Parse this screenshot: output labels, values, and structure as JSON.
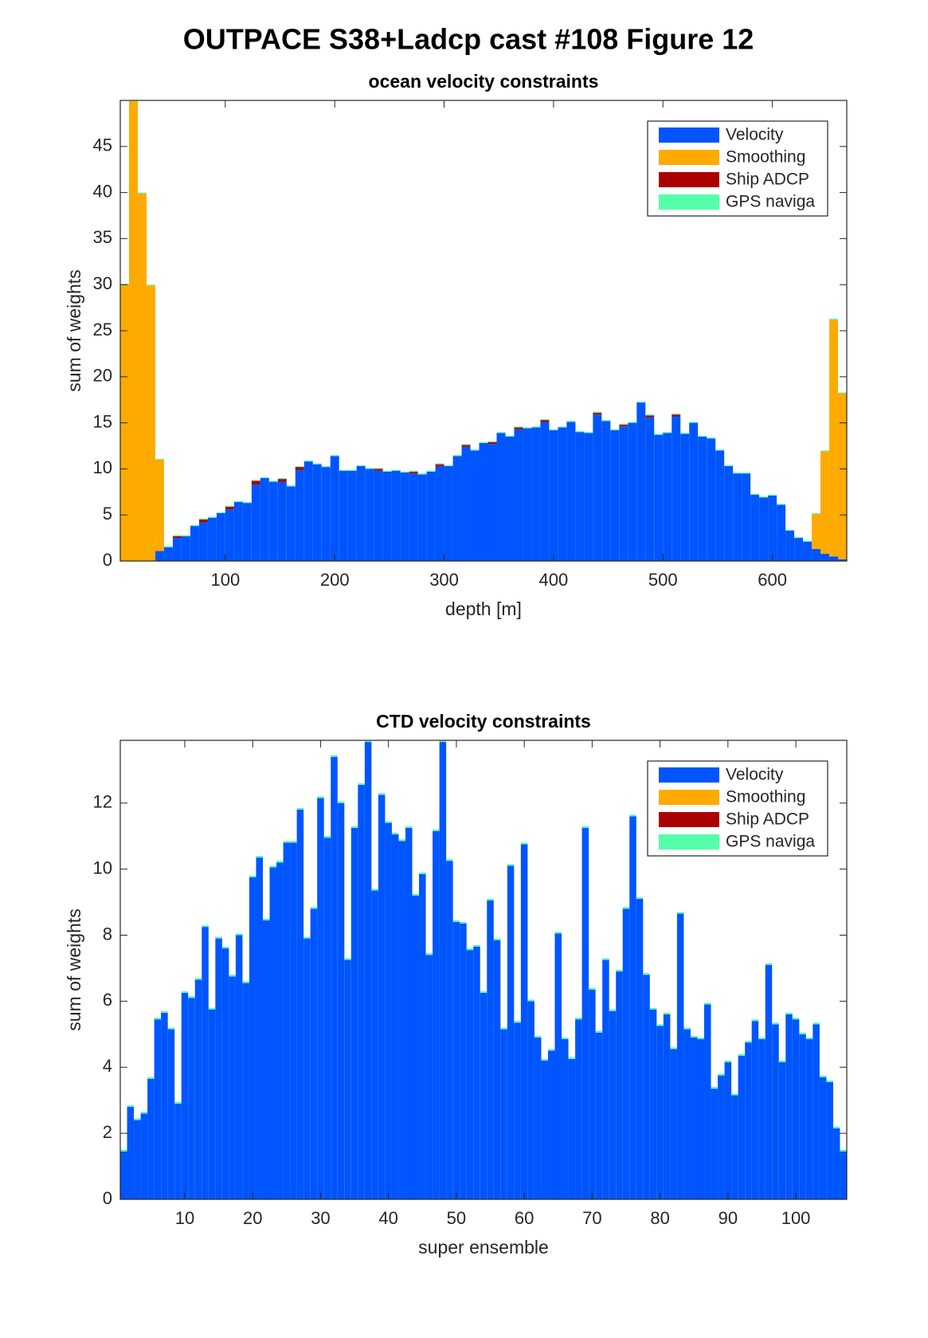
{
  "title": "OUTPACE S38+Ladcp cast #108  Figure 12",
  "chart_data": [
    {
      "type": "bar",
      "stacked": true,
      "title": "ocean velocity constraints",
      "xlabel": "depth [m]",
      "ylabel": "sum of weights",
      "legend": "northeast",
      "x": [
        8,
        16,
        24,
        32,
        40,
        48,
        56,
        64,
        72,
        80,
        88,
        96,
        104,
        112,
        120,
        128,
        136,
        144,
        152,
        160,
        168,
        176,
        184,
        192,
        200,
        208,
        216,
        224,
        232,
        240,
        248,
        256,
        264,
        272,
        280,
        288,
        296,
        304,
        312,
        320,
        328,
        336,
        344,
        352,
        360,
        368,
        376,
        384,
        392,
        400,
        408,
        416,
        424,
        432,
        440,
        448,
        456,
        464,
        472,
        480,
        488,
        496,
        504,
        512,
        520,
        528,
        536,
        544,
        552,
        560,
        568,
        576,
        584,
        592,
        600,
        608,
        616,
        624,
        632,
        640,
        648,
        656,
        664
      ],
      "xlim": [
        4,
        668
      ],
      "xticks": [
        100,
        200,
        300,
        400,
        500,
        600
      ],
      "ylim": [
        0,
        50
      ],
      "yticks": [
        0,
        5,
        10,
        15,
        20,
        25,
        30,
        35,
        40,
        45
      ],
      "series": [
        {
          "name": "Velocity",
          "color": "#0055ff",
          "values": [
            0,
            0,
            0,
            0,
            1.1,
            1.5,
            2.5,
            2.7,
            3.8,
            4.2,
            4.7,
            5.2,
            5.6,
            6.4,
            6.3,
            8.3,
            9.0,
            8.6,
            8.6,
            8.1,
            9.9,
            10.8,
            10.5,
            10.2,
            11.4,
            9.8,
            9.8,
            10.3,
            10.0,
            9.8,
            9.7,
            9.8,
            9.6,
            9.5,
            9.4,
            9.7,
            10.3,
            10.3,
            11.4,
            12.4,
            12.0,
            12.8,
            12.7,
            13.9,
            13.5,
            14.3,
            14.4,
            14.5,
            15.1,
            14.2,
            14.5,
            15.1,
            14.0,
            13.9,
            15.9,
            15.2,
            14.2,
            14.6,
            15.0,
            17.2,
            15.6,
            13.7,
            13.9,
            15.7,
            13.8,
            15.0,
            13.5,
            13.3,
            12.0,
            10.3,
            9.5,
            9.5,
            7.2,
            6.9,
            7.1,
            6.1,
            3.3,
            2.5,
            2.1,
            1.3,
            0.8,
            0.5,
            0.2
          ]
        },
        {
          "name": "Smoothing",
          "color": "#ffaa00",
          "values": [
            30,
            49.9,
            39.9,
            29.9,
            9.9,
            0,
            0,
            0,
            0,
            0,
            0,
            0,
            0,
            0,
            0,
            0,
            0,
            0,
            0,
            0,
            0,
            0,
            0,
            0,
            0,
            0,
            0,
            0,
            0,
            0,
            0,
            0,
            0,
            0,
            0,
            0,
            0,
            0,
            0,
            0,
            0,
            0,
            0,
            0,
            0,
            0,
            0,
            0,
            0,
            0,
            0,
            0,
            0,
            0,
            0,
            0,
            0,
            0,
            0,
            0,
            0,
            0,
            0,
            0,
            0,
            0,
            0,
            0,
            0,
            0,
            0,
            0,
            0,
            0,
            0,
            0,
            0,
            0,
            0,
            3.8,
            11.1,
            25.7,
            18.0
          ]
        },
        {
          "name": "Ship ADCP",
          "color": "#aa0000",
          "values": [
            0,
            0,
            0,
            0,
            0,
            0,
            0.2,
            0,
            0,
            0.3,
            0,
            0,
            0.3,
            0,
            0,
            0.4,
            0,
            0,
            0.3,
            0,
            0.3,
            0,
            0,
            0,
            0,
            0,
            0,
            0,
            0,
            0.2,
            0,
            0,
            0,
            0.2,
            0,
            0,
            0.2,
            0,
            0,
            0.2,
            0,
            0,
            0.2,
            0,
            0,
            0.2,
            0,
            0,
            0.2,
            0,
            0,
            0,
            0,
            0,
            0.2,
            0,
            0,
            0.2,
            0,
            0,
            0.2,
            0,
            0,
            0.2,
            0,
            0,
            0,
            0,
            0,
            0,
            0,
            0,
            0,
            0,
            0,
            0,
            0,
            0,
            0,
            0,
            0,
            0,
            0
          ]
        },
        {
          "name": "GPS naviga",
          "color": "#55ffaa",
          "values": [
            0.1,
            0.1,
            0.1,
            0.1,
            0.1,
            0.1,
            0.1,
            0.1,
            0.1,
            0.1,
            0.1,
            0.1,
            0.1,
            0.1,
            0.1,
            0.1,
            0.1,
            0.1,
            0.1,
            0.1,
            0.1,
            0.1,
            0.1,
            0.1,
            0.1,
            0.1,
            0.1,
            0.1,
            0.1,
            0.1,
            0.1,
            0.1,
            0.1,
            0.1,
            0.1,
            0.1,
            0.1,
            0.1,
            0.1,
            0.1,
            0.1,
            0.1,
            0.1,
            0.1,
            0.1,
            0.1,
            0.1,
            0.1,
            0.1,
            0.1,
            0.1,
            0.1,
            0.1,
            0.1,
            0.1,
            0.1,
            0.1,
            0.1,
            0.1,
            0.1,
            0.1,
            0.1,
            0.1,
            0.1,
            0.1,
            0.1,
            0.1,
            0.1,
            0.1,
            0.1,
            0.1,
            0.1,
            0.1,
            0.1,
            0.1,
            0.1,
            0.1,
            0.1,
            0.1,
            0.1,
            0.1,
            0.1,
            0.1
          ]
        }
      ]
    },
    {
      "type": "bar",
      "stacked": true,
      "title": "CTD velocity constraints",
      "xlabel": "super ensemble",
      "ylabel": "sum of weights",
      "legend": "northeast",
      "x": [
        1,
        2,
        3,
        4,
        5,
        6,
        7,
        8,
        9,
        10,
        11,
        12,
        13,
        14,
        15,
        16,
        17,
        18,
        19,
        20,
        21,
        22,
        23,
        24,
        25,
        26,
        27,
        28,
        29,
        30,
        31,
        32,
        33,
        34,
        35,
        36,
        37,
        38,
        39,
        40,
        41,
        42,
        43,
        44,
        45,
        46,
        47,
        48,
        49,
        50,
        51,
        52,
        53,
        54,
        55,
        56,
        57,
        58,
        59,
        60,
        61,
        62,
        63,
        64,
        65,
        66,
        67,
        68,
        69,
        70,
        71,
        72,
        73,
        74,
        75,
        76,
        77,
        78,
        79,
        80,
        81,
        82,
        83,
        84,
        85,
        86,
        87,
        88,
        89,
        90,
        91,
        92,
        93,
        94,
        95,
        96,
        97,
        98,
        99,
        100,
        101,
        102,
        103,
        104,
        105,
        106,
        107
      ],
      "xlim": [
        0.5,
        107.5
      ],
      "xticks": [
        10,
        20,
        30,
        40,
        50,
        60,
        70,
        80,
        90,
        100
      ],
      "ylim": [
        0,
        13.9
      ],
      "yticks": [
        0,
        2,
        4,
        6,
        8,
        10,
        12
      ],
      "series": [
        {
          "name": "Velocity",
          "color": "#0055ff",
          "values": [
            1.45,
            2.8,
            2.4,
            2.6,
            3.65,
            5.45,
            5.65,
            5.15,
            2.9,
            6.25,
            6.1,
            6.65,
            8.25,
            5.75,
            7.9,
            7.6,
            6.75,
            8.0,
            6.55,
            9.75,
            10.35,
            8.45,
            10.05,
            10.2,
            10.8,
            10.8,
            11.8,
            7.9,
            8.8,
            12.15,
            10.95,
            13.4,
            12.0,
            7.25,
            11.25,
            12.55,
            13.85,
            9.35,
            12.25,
            11.4,
            11.05,
            10.85,
            11.25,
            9.2,
            9.85,
            7.4,
            11.15,
            13.85,
            10.25,
            8.4,
            8.35,
            7.55,
            7.65,
            6.25,
            9.05,
            7.85,
            5.15,
            10.1,
            5.35,
            10.75,
            6.0,
            4.9,
            4.2,
            4.5,
            8.05,
            4.85,
            4.25,
            5.45,
            11.25,
            6.35,
            5.05,
            7.25,
            5.7,
            6.9,
            8.8,
            11.6,
            9.1,
            6.8,
            5.75,
            5.25,
            5.6,
            4.55,
            8.65,
            5.15,
            4.9,
            4.85,
            5.9,
            3.35,
            3.75,
            4.15,
            3.15,
            4.35,
            4.75,
            5.4,
            4.85,
            7.1,
            5.3,
            4.15,
            5.6,
            5.45,
            5.0,
            4.85,
            5.3,
            3.7,
            3.55,
            2.15,
            1.45
          ]
        },
        {
          "name": "Smoothing",
          "color": "#ffaa00",
          "values": [
            0,
            0,
            0,
            0,
            0,
            0,
            0,
            0,
            0,
            0,
            0,
            0,
            0,
            0,
            0,
            0,
            0,
            0,
            0,
            0,
            0,
            0,
            0,
            0,
            0,
            0,
            0,
            0,
            0,
            0,
            0,
            0,
            0,
            0,
            0,
            0,
            0,
            0,
            0,
            0,
            0,
            0,
            0,
            0,
            0,
            0,
            0,
            0,
            0,
            0,
            0,
            0,
            0,
            0,
            0,
            0,
            0,
            0,
            0,
            0,
            0,
            0,
            0,
            0,
            0,
            0,
            0,
            0,
            0,
            0,
            0,
            0,
            0,
            0,
            0,
            0,
            0,
            0,
            0,
            0,
            0,
            0,
            0,
            0,
            0,
            0,
            0,
            0,
            0,
            0,
            0,
            0,
            0,
            0,
            0,
            0,
            0,
            0,
            0,
            0,
            0,
            0,
            0,
            0,
            0,
            0,
            0
          ]
        },
        {
          "name": "Ship ADCP",
          "color": "#aa0000",
          "values": [
            0,
            0,
            0,
            0,
            0,
            0,
            0,
            0,
            0,
            0,
            0,
            0,
            0,
            0,
            0,
            0,
            0,
            0,
            0,
            0,
            0,
            0,
            0,
            0,
            0,
            0,
            0,
            0,
            0,
            0,
            0,
            0,
            0,
            0,
            0,
            0,
            0,
            0,
            0,
            0,
            0,
            0,
            0,
            0,
            0,
            0,
            0,
            0,
            0,
            0,
            0,
            0,
            0,
            0,
            0,
            0,
            0,
            0,
            0,
            0,
            0,
            0,
            0,
            0,
            0,
            0,
            0,
            0,
            0,
            0,
            0,
            0,
            0,
            0,
            0,
            0,
            0,
            0,
            0,
            0,
            0,
            0,
            0,
            0,
            0,
            0,
            0,
            0,
            0,
            0,
            0,
            0,
            0,
            0,
            0,
            0,
            0,
            0,
            0,
            0,
            0,
            0,
            0,
            0,
            0,
            0,
            0
          ]
        },
        {
          "name": "GPS naviga",
          "color": "#55ffaa",
          "values": [
            0.05,
            0.05,
            0.05,
            0.05,
            0.05,
            0.05,
            0.05,
            0.05,
            0.05,
            0.05,
            0.05,
            0.05,
            0.05,
            0.05,
            0.05,
            0.05,
            0.05,
            0.05,
            0.05,
            0.05,
            0.05,
            0.05,
            0.05,
            0.05,
            0.05,
            0.05,
            0.05,
            0.05,
            0.05,
            0.05,
            0.05,
            0.05,
            0.05,
            0.05,
            0.05,
            0.05,
            0.05,
            0.05,
            0.05,
            0.05,
            0.05,
            0.05,
            0.05,
            0.05,
            0.05,
            0.05,
            0.05,
            0.05,
            0.05,
            0.05,
            0.05,
            0.05,
            0.05,
            0.05,
            0.05,
            0.05,
            0.05,
            0.05,
            0.05,
            0.05,
            0.05,
            0.05,
            0.05,
            0.05,
            0.05,
            0.05,
            0.05,
            0.05,
            0.05,
            0.05,
            0.05,
            0.05,
            0.05,
            0.05,
            0.05,
            0.05,
            0.05,
            0.05,
            0.05,
            0.05,
            0.05,
            0.05,
            0.05,
            0.05,
            0.05,
            0.05,
            0.05,
            0.05,
            0.05,
            0.05,
            0.05,
            0.05,
            0.05,
            0.05,
            0.05,
            0.05,
            0.05,
            0.05,
            0.05,
            0.05,
            0.05,
            0.05,
            0.05,
            0.05,
            0.05,
            0.05,
            0.05
          ]
        }
      ]
    }
  ]
}
